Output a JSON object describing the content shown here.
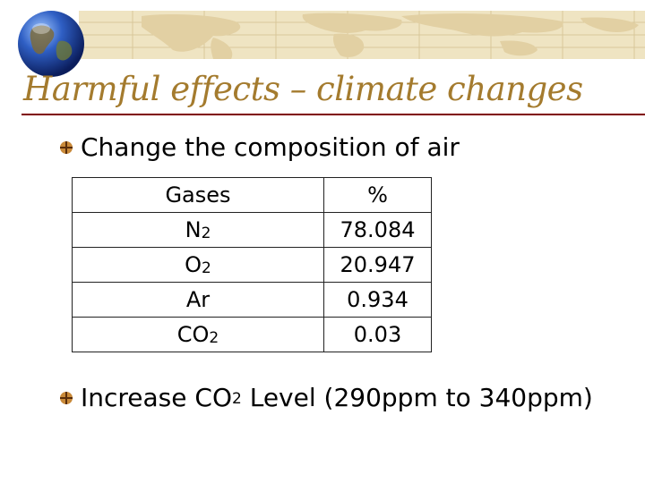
{
  "slide": {
    "title": "Harmful effects – climate changes",
    "bullets": {
      "b1": "Change the composition of air",
      "b2": {
        "prefix": "Increase CO",
        "sub": "2",
        "suffix": " Level (290ppm to 340ppm)"
      }
    },
    "table": {
      "headers": [
        "Gases",
        "%"
      ],
      "rows": [
        {
          "gas": "N",
          "sub": "2",
          "pct": "78.084"
        },
        {
          "gas": "O",
          "sub": "2",
          "pct": "20.947"
        },
        {
          "gas": "Ar",
          "sub": "",
          "pct": "0.934"
        },
        {
          "gas": "CO",
          "sub": "2",
          "pct": "0.03"
        }
      ]
    }
  },
  "theme": {
    "title_color": "#a47b2e",
    "rule_color": "#7f0000",
    "banner_color": "#efe4c2",
    "bullet_color": "#8b5a1b"
  }
}
